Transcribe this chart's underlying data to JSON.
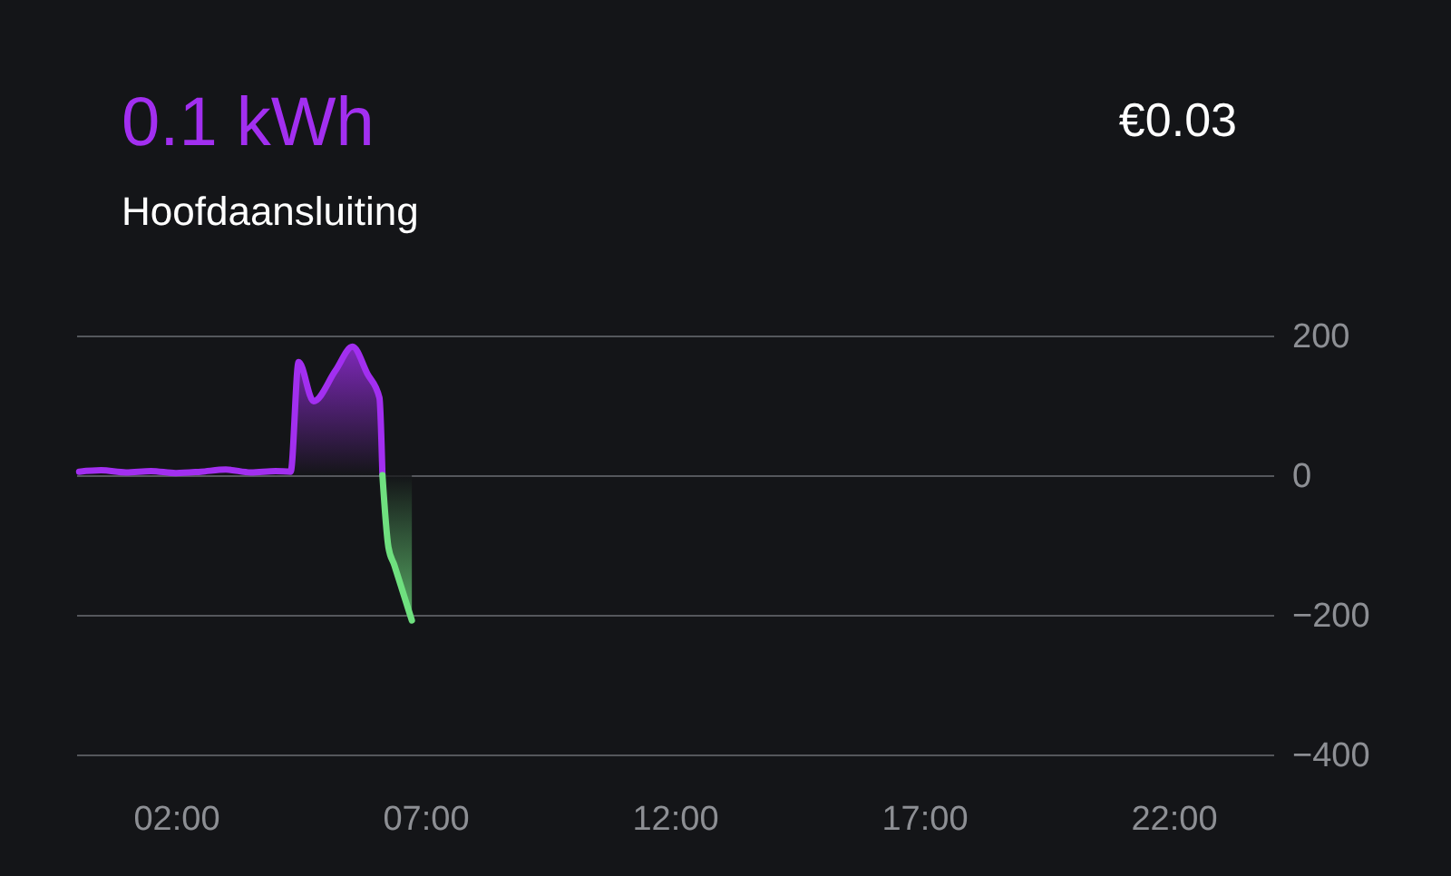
{
  "chart_data": {
    "type": "area",
    "title": "0.1 kWh",
    "subtitle": "Hoofdaansluiting",
    "annotations": [
      "€0.03"
    ],
    "xlim": [
      0,
      24
    ],
    "xticks": [
      {
        "value": 2,
        "label": "02:00"
      },
      {
        "value": 7,
        "label": "07:00"
      },
      {
        "value": 12,
        "label": "12:00"
      },
      {
        "value": 17,
        "label": "17:00"
      },
      {
        "value": 22,
        "label": "22:00"
      }
    ],
    "ylim": [
      -400,
      200
    ],
    "yticks": [
      -400,
      -200,
      0,
      200
    ],
    "grid": "y",
    "series": [
      {
        "color": "#a22ff0",
        "x": [
          0.06,
          0.5,
          1.0,
          1.5,
          2.0,
          2.5,
          3.0,
          3.5,
          4.0,
          4.3,
          4.46,
          4.76,
          5.2,
          5.54,
          5.84,
          6.08,
          6.14
        ],
        "values": [
          5,
          7,
          4,
          6,
          3,
          5,
          8,
          4,
          6,
          5,
          162,
          106,
          150,
          184,
          145,
          111,
          0
        ]
      },
      {
        "color": "#6fe07f",
        "x": [
          6.14,
          6.26,
          6.38,
          6.73
        ],
        "values": [
          0,
          -103,
          -129,
          -208
        ]
      }
    ]
  }
}
